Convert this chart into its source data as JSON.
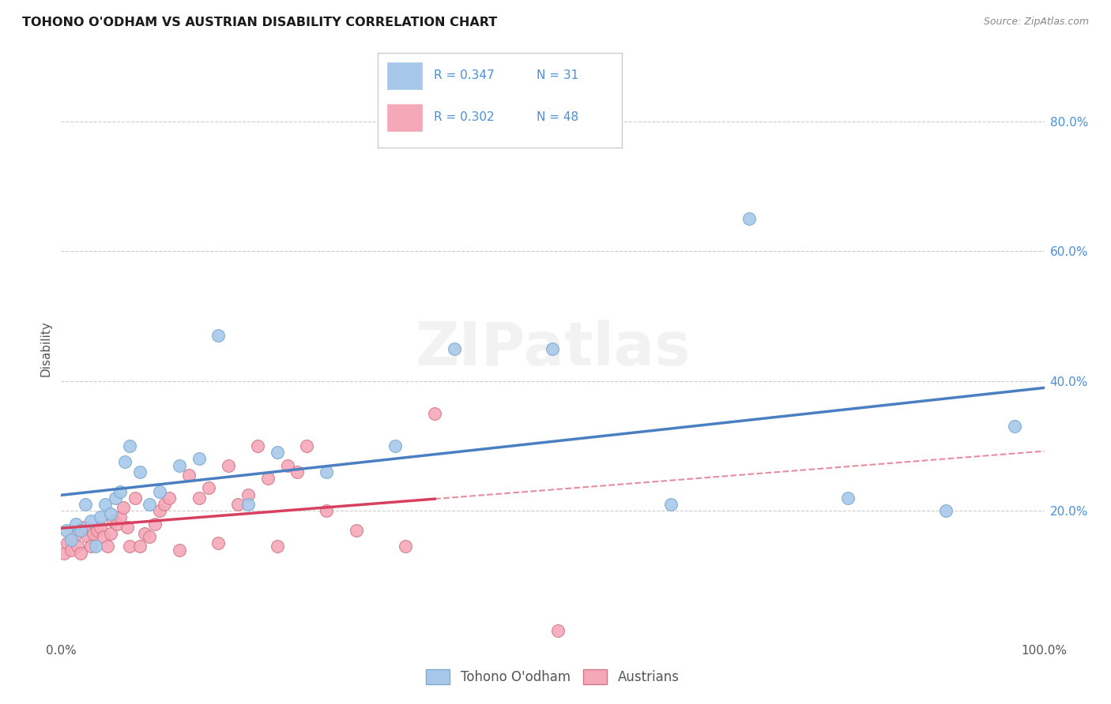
{
  "title": "TOHONO O'ODHAM VS AUSTRIAN DISABILITY CORRELATION CHART",
  "source": "Source: ZipAtlas.com",
  "ylabel": "Disability",
  "watermark": "ZIPatlas",
  "blue_r": 0.347,
  "blue_n": 31,
  "pink_r": 0.302,
  "pink_n": 48,
  "blue_label": "Tohono O'odham",
  "pink_label": "Austrians",
  "title_color": "#1a1a1a",
  "source_color": "#888888",
  "blue_scatter_color": "#a8c8ea",
  "blue_line_color": "#4a7fc1",
  "pink_scatter_color": "#f5a8b8",
  "pink_line_color": "#d84060",
  "blue_dot_edge": "#7aaad0",
  "pink_dot_edge": "#d07888",
  "legend_color": "#4a90d9",
  "right_tick_color": "#4a90d9",
  "axis_label_color": "#555555",
  "grid_color": "#cccccc",
  "bg_color": "#ffffff",
  "blue_x": [
    0.5,
    1.0,
    1.5,
    2.0,
    2.5,
    3.0,
    3.5,
    4.0,
    4.5,
    5.0,
    5.5,
    6.0,
    6.5,
    7.0,
    8.0,
    9.0,
    10.0,
    12.0,
    14.0,
    16.0,
    19.0,
    22.0,
    27.0,
    34.0,
    40.0,
    50.0,
    62.0,
    70.0,
    80.0,
    90.0,
    97.0
  ],
  "blue_y": [
    17.0,
    15.5,
    18.0,
    17.0,
    21.0,
    18.5,
    14.5,
    19.0,
    21.0,
    19.5,
    22.0,
    23.0,
    27.5,
    30.0,
    26.0,
    21.0,
    23.0,
    27.0,
    28.0,
    47.0,
    21.0,
    29.0,
    26.0,
    30.0,
    45.0,
    45.0,
    21.0,
    65.0,
    22.0,
    20.0,
    33.0
  ],
  "pink_x": [
    0.3,
    0.6,
    1.0,
    1.3,
    1.7,
    2.0,
    2.3,
    2.7,
    3.0,
    3.3,
    3.7,
    4.0,
    4.3,
    4.7,
    5.0,
    5.3,
    5.7,
    6.0,
    6.3,
    6.7,
    7.0,
    7.5,
    8.0,
    8.5,
    9.0,
    9.5,
    10.0,
    10.5,
    11.0,
    12.0,
    13.0,
    14.0,
    15.0,
    16.0,
    17.0,
    18.0,
    19.0,
    20.0,
    21.0,
    22.0,
    23.0,
    24.0,
    25.0,
    27.0,
    30.0,
    35.0,
    38.0,
    50.5
  ],
  "pink_y": [
    13.5,
    15.0,
    14.0,
    16.0,
    14.5,
    13.5,
    17.5,
    16.0,
    14.5,
    16.5,
    17.0,
    17.5,
    16.0,
    14.5,
    16.5,
    18.5,
    18.0,
    19.0,
    20.5,
    17.5,
    14.5,
    22.0,
    14.5,
    16.5,
    16.0,
    18.0,
    20.0,
    21.0,
    22.0,
    14.0,
    25.5,
    22.0,
    23.5,
    15.0,
    27.0,
    21.0,
    22.5,
    30.0,
    25.0,
    14.5,
    27.0,
    26.0,
    30.0,
    20.0,
    17.0,
    14.5,
    35.0,
    1.5
  ],
  "xlim": [
    0,
    100
  ],
  "ylim": [
    0,
    90
  ],
  "yticks": [
    20,
    40,
    60,
    80
  ],
  "pink_line_xmax": 38.0
}
